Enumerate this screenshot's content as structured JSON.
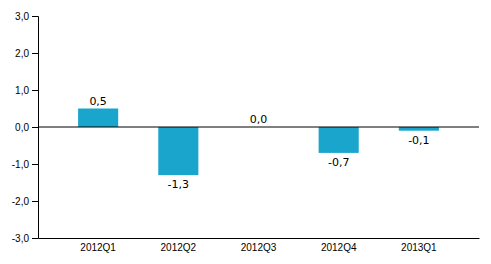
{
  "chart_data": {
    "type": "bar",
    "categories": [
      "2012Q1",
      "2012Q2",
      "2012Q3",
      "2012Q4",
      "2013Q1"
    ],
    "values": [
      0.5,
      -1.3,
      0.0,
      -0.7,
      -0.1
    ],
    "value_labels": [
      "0,5",
      "-1,3",
      "0,0",
      "-0,7",
      "-0,1"
    ],
    "color": "#1aa5cc",
    "ylim": [
      -3.0,
      3.0
    ],
    "yticks": [
      {
        "value": -3.0,
        "label": "-3,0"
      },
      {
        "value": -2.0,
        "label": "-2,0"
      },
      {
        "value": -1.0,
        "label": "-1,0"
      },
      {
        "value": 0.0,
        "label": "0,0"
      },
      {
        "value": 1.0,
        "label": "1,0"
      },
      {
        "value": 2.0,
        "label": "2,0"
      },
      {
        "value": 3.0,
        "label": "3,0"
      }
    ],
    "data_labels": true,
    "grid": false
  }
}
